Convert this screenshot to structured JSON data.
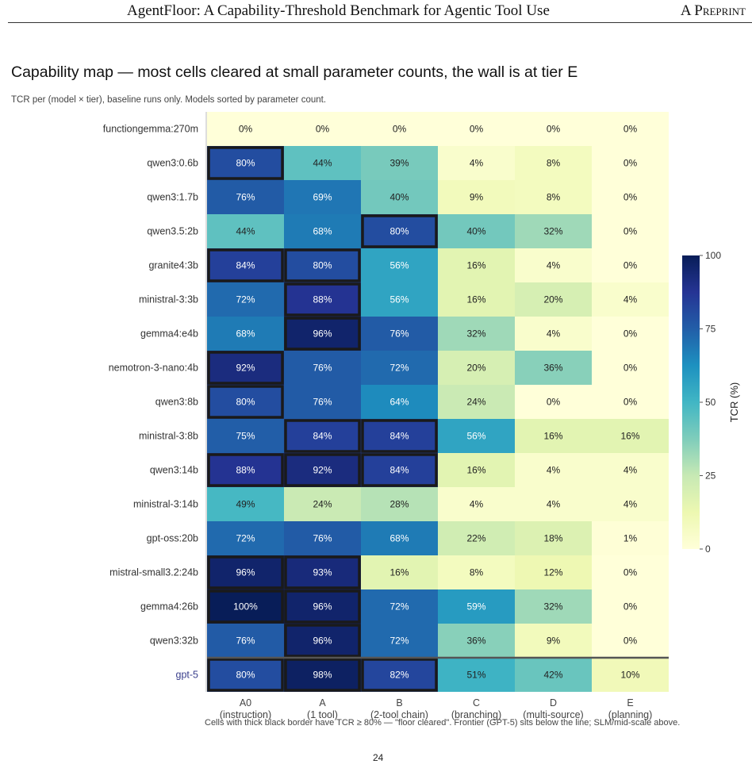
{
  "page": {
    "header_title": "AgentFloor: A Capability-Threshold Benchmark for Agentic Tool Use",
    "header_right": "A Preprint",
    "page_number": "24"
  },
  "colors": {
    "scale": [
      "#ffffd9",
      "#edf8b1",
      "#c7e9b4",
      "#7fcdbb",
      "#41b6c4",
      "#1d91c0",
      "#225ea8",
      "#253494",
      "#081d58"
    ],
    "floor_border": "#1a1a1a",
    "frontier_line": "#555555",
    "frontier_label": "#3a3f8c"
  },
  "chart_data": {
    "type": "heatmap",
    "title": "Capability map — most cells cleared at small parameter counts, the wall is at tier E",
    "subtitle": "TCR per (model × tier), baseline runs only. Models sorted by parameter count.",
    "caption": "Cells with thick black border have TCR ≥ 80% — \"floor cleared\". Frontier (GPT-5) sits below the line; SLM/mid-scale above.",
    "colorbar_label": "TCR (%)",
    "colorbar_range": [
      0,
      100
    ],
    "colorbar_ticks": [
      "100",
      "75",
      "50",
      "25",
      "0"
    ],
    "floor_threshold": 80,
    "tiers": [
      {
        "code": "A0",
        "desc": "(instruction)"
      },
      {
        "code": "A",
        "desc": "(1 tool)"
      },
      {
        "code": "B",
        "desc": "(2-tool chain)"
      },
      {
        "code": "C",
        "desc": "(branching)"
      },
      {
        "code": "D",
        "desc": "(multi-source)"
      },
      {
        "code": "E",
        "desc": "(planning)"
      }
    ],
    "models": [
      "functiongemma:270m",
      "qwen3:0.6b",
      "qwen3:1.7b",
      "qwen3.5:2b",
      "granite4:3b",
      "ministral-3:3b",
      "gemma4:e4b",
      "nemotron-3-nano:4b",
      "qwen3:8b",
      "ministral-3:8b",
      "qwen3:14b",
      "ministral-3:14b",
      "gpt-oss:20b",
      "mistral-small3.2:24b",
      "gemma4:26b",
      "qwen3:32b",
      "gpt-5"
    ],
    "frontier_model": "gpt-5",
    "values": [
      [
        0,
        0,
        0,
        0,
        0,
        0
      ],
      [
        80,
        44,
        39,
        4,
        8,
        0
      ],
      [
        76,
        69,
        40,
        9,
        8,
        0
      ],
      [
        44,
        68,
        80,
        40,
        32,
        0
      ],
      [
        84,
        80,
        56,
        16,
        4,
        0
      ],
      [
        72,
        88,
        56,
        16,
        20,
        4
      ],
      [
        68,
        96,
        76,
        32,
        4,
        0
      ],
      [
        92,
        76,
        72,
        20,
        36,
        0
      ],
      [
        80,
        76,
        64,
        24,
        0,
        0
      ],
      [
        75,
        84,
        84,
        56,
        16,
        16
      ],
      [
        88,
        92,
        84,
        16,
        4,
        4
      ],
      [
        49,
        24,
        28,
        4,
        4,
        4
      ],
      [
        72,
        76,
        68,
        22,
        18,
        1
      ],
      [
        96,
        93,
        16,
        8,
        12,
        0
      ],
      [
        100,
        96,
        72,
        59,
        32,
        0
      ],
      [
        76,
        96,
        72,
        36,
        9,
        0
      ],
      [
        80,
        98,
        82,
        51,
        42,
        10
      ]
    ],
    "labels": [
      [
        "0%",
        "0%",
        "0%",
        "0%",
        "0%",
        "0%"
      ],
      [
        "80%",
        "44%",
        "39%",
        "4%",
        "8%",
        "0%"
      ],
      [
        "76%",
        "69%",
        "40%",
        "9%",
        "8%",
        "0%"
      ],
      [
        "44%",
        "68%",
        "80%",
        "40%",
        "32%",
        "0%"
      ],
      [
        "84%",
        "80%",
        "56%",
        "16%",
        "4%",
        "0%"
      ],
      [
        "72%",
        "88%",
        "56%",
        "16%",
        "20%",
        "4%"
      ],
      [
        "68%",
        "96%",
        "76%",
        "32%",
        "4%",
        "0%"
      ],
      [
        "92%",
        "76%",
        "72%",
        "20%",
        "36%",
        "0%"
      ],
      [
        "80%",
        "76%",
        "64%",
        "24%",
        "0%",
        "0%"
      ],
      [
        "75%",
        "84%",
        "84%",
        "56%",
        "16%",
        "16%"
      ],
      [
        "88%",
        "92%",
        "84%",
        "16%",
        "4%",
        "4%"
      ],
      [
        "49%",
        "24%",
        "28%",
        "4%",
        "4%",
        "4%"
      ],
      [
        "72%",
        "76%",
        "68%",
        "22%",
        "18%",
        "1%"
      ],
      [
        "96%",
        "93%",
        "16%",
        "8%",
        "12%",
        "0%"
      ],
      [
        "100%",
        "96%",
        "72%",
        "59%",
        "32%",
        "0%"
      ],
      [
        "76%",
        "96%",
        "72%",
        "36%",
        "9%",
        "0%"
      ],
      [
        "80%",
        "98%",
        "82%",
        "51%",
        "42%",
        "10%"
      ]
    ]
  }
}
